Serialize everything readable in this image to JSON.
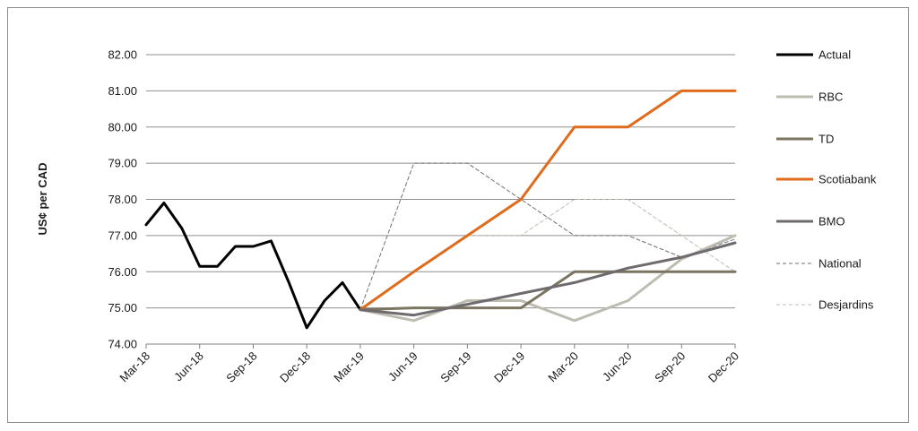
{
  "chart_data": {
    "type": "line",
    "ylabel": "US¢ per CAD",
    "ylim": [
      74,
      82
    ],
    "ytick_labels": [
      "74.00",
      "75.00",
      "76.00",
      "77.00",
      "78.00",
      "79.00",
      "80.00",
      "81.00",
      "82.00"
    ],
    "x_tick_labels": [
      "Mar-18",
      "Jun-18",
      "Sep-18",
      "Dec-18",
      "Mar-19",
      "Jun-19",
      "Sep-19",
      "Dec-19",
      "Mar-20",
      "Jun-20",
      "Sep-20",
      "Dec-20"
    ],
    "x_unit": "months since Mar-18",
    "grid": "horizontal",
    "legend_position": "right",
    "series": [
      {
        "name": "Actual",
        "color": "#000000",
        "style": "solid",
        "width": 3,
        "x": [
          0,
          1,
          2,
          3,
          4,
          5,
          6,
          7,
          8,
          9,
          10,
          11,
          12
        ],
        "values": [
          77.3,
          77.9,
          77.2,
          76.15,
          76.15,
          76.7,
          76.7,
          76.85,
          75.7,
          74.45,
          75.2,
          75.7,
          74.95
        ]
      },
      {
        "name": "RBC",
        "color": "#bdbcb0",
        "style": "solid",
        "width": 3,
        "x": [
          12,
          15,
          18,
          21,
          24,
          27,
          30,
          33
        ],
        "values": [
          74.95,
          74.65,
          75.2,
          75.2,
          74.65,
          75.2,
          76.35,
          77.0
        ]
      },
      {
        "name": "TD",
        "color": "#7b7460",
        "style": "solid",
        "width": 3,
        "x": [
          12,
          15,
          18,
          21,
          24,
          27,
          30,
          33
        ],
        "values": [
          74.95,
          75.0,
          75.0,
          75.0,
          76.0,
          76.0,
          76.0,
          76.0
        ]
      },
      {
        "name": "Scotiabank",
        "color": "#e06b1c",
        "style": "solid",
        "width": 3,
        "x": [
          12,
          15,
          18,
          21,
          24,
          27,
          30,
          33
        ],
        "values": [
          74.95,
          76.0,
          77.0,
          78.0,
          80.0,
          80.0,
          81.0,
          81.0
        ]
      },
      {
        "name": "BMO",
        "color": "#6e6a6e",
        "style": "solid",
        "width": 3,
        "x": [
          12,
          15,
          18,
          21,
          24,
          27,
          30,
          33
        ],
        "values": [
          74.95,
          74.8,
          75.1,
          75.4,
          75.7,
          76.1,
          76.4,
          76.8
        ]
      },
      {
        "name": "National",
        "color": "#707070",
        "style": "dashed",
        "width": 1,
        "x": [
          12,
          15,
          18,
          21,
          24,
          27,
          30,
          33
        ],
        "values": [
          74.95,
          79.0,
          79.0,
          78.0,
          77.0,
          77.0,
          76.4,
          76.9
        ]
      },
      {
        "name": "Desjardins",
        "color": "#bdbcb0",
        "style": "dashed",
        "width": 1,
        "x": [
          12,
          15,
          18,
          21,
          24,
          27,
          30,
          33
        ],
        "values": [
          74.95,
          76.0,
          77.0,
          77.0,
          78.0,
          78.0,
          77.0,
          76.0
        ]
      }
    ]
  }
}
